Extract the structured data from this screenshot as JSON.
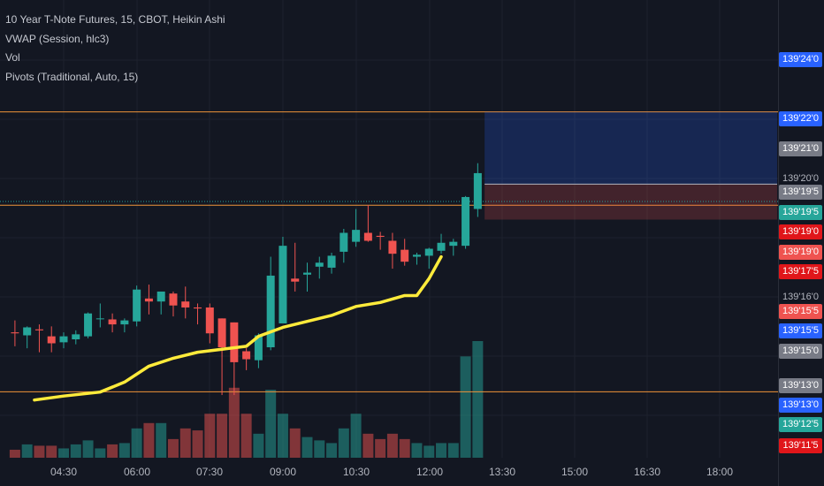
{
  "legend": {
    "title": "10 Year T-Note Futures, 15, CBOT, Heikin Ashi",
    "vwap": "VWAP (Session, hlc3)",
    "vol": "Vol",
    "pivots": "Pivots (Traditional, Auto, 15)"
  },
  "colors": {
    "up": "#26a69a",
    "down": "#ef5350",
    "vwap": "#ffeb3b",
    "pivot": "#f0953a",
    "bg": "#131722"
  },
  "price_axis": {
    "ticks": [
      "139'24'0",
      "139'22'0",
      "139'20'0",
      "139'16'0",
      "139'15'0",
      "139'13'0"
    ],
    "badges": [
      {
        "text": "139'22'0",
        "color": "#2962ff"
      },
      {
        "text": "139'21'0",
        "color": "#787b86"
      },
      {
        "text": "139'19'5",
        "color": "#787b86"
      },
      {
        "text": "139'19'5",
        "color": "#26a69a"
      },
      {
        "text": "139'19'0",
        "color": "#e0161a"
      },
      {
        "text": "139'19'0",
        "color": "#ef5350"
      },
      {
        "text": "139'17'5",
        "color": "#e0161a"
      },
      {
        "text": "139'15'5",
        "color": "#ef5350"
      },
      {
        "text": "139'15'5",
        "color": "#2962ff"
      },
      {
        "text": "139'15'0",
        "color": "#787b86"
      },
      {
        "text": "139'13'0",
        "color": "#787b86"
      },
      {
        "text": "139'13'0",
        "color": "#2962ff"
      },
      {
        "text": "139'12'5",
        "color": "#26a69a"
      },
      {
        "text": "139'11'5",
        "color": "#e0161a"
      }
    ]
  },
  "time_axis": [
    "04:30",
    "06:00",
    "07:30",
    "09:00",
    "10:30",
    "12:00",
    "13:30",
    "15:00",
    "16:30",
    "18:00"
  ],
  "chart_data": {
    "type": "candlestick",
    "title": "10 Year T-Note Futures, 15, CBOT, Heikin Ashi",
    "interval_minutes": 15,
    "price_unit": "32nds",
    "ylim": [
      139.34,
      139.8
    ],
    "pivot_levels": [
      139.6875,
      139.5938,
      139.4063
    ],
    "vwap": [
      [
        3.9,
        139.398
      ],
      [
        4.5,
        139.402
      ],
      [
        5.25,
        139.406
      ],
      [
        5.75,
        139.416
      ],
      [
        6.25,
        139.432
      ],
      [
        6.75,
        139.44
      ],
      [
        7.25,
        139.446
      ],
      [
        7.75,
        139.449
      ],
      [
        8.25,
        139.452
      ],
      [
        8.5,
        139.462
      ],
      [
        9.0,
        139.471
      ],
      [
        9.5,
        139.477
      ],
      [
        10.0,
        139.483
      ],
      [
        10.5,
        139.492
      ],
      [
        11.0,
        139.496
      ],
      [
        11.5,
        139.503
      ],
      [
        11.75,
        139.503
      ],
      [
        12.0,
        139.52
      ],
      [
        12.25,
        139.542
      ]
    ],
    "candles": [
      {
        "t": 3.5,
        "o": 139.466,
        "h": 139.478,
        "l": 139.452,
        "c": 139.465,
        "v": 1200
      },
      {
        "t": 3.75,
        "o": 139.463,
        "h": 139.472,
        "l": 139.45,
        "c": 139.471,
        "v": 2000
      },
      {
        "t": 4.0,
        "o": 139.469,
        "h": 139.474,
        "l": 139.446,
        "c": 139.468,
        "v": 1800
      },
      {
        "t": 4.25,
        "o": 139.462,
        "h": 139.472,
        "l": 139.446,
        "c": 139.455,
        "v": 1800
      },
      {
        "t": 4.5,
        "o": 139.456,
        "h": 139.466,
        "l": 139.45,
        "c": 139.462,
        "v": 1400
      },
      {
        "t": 4.75,
        "o": 139.459,
        "h": 139.468,
        "l": 139.454,
        "c": 139.464,
        "v": 2000
      },
      {
        "t": 5.0,
        "o": 139.462,
        "h": 139.486,
        "l": 139.46,
        "c": 139.485,
        "v": 2600
      },
      {
        "t": 5.25,
        "o": 139.48,
        "h": 139.495,
        "l": 139.471,
        "c": 139.48,
        "v": 1400
      },
      {
        "t": 5.5,
        "o": 139.479,
        "h": 139.485,
        "l": 139.466,
        "c": 139.474,
        "v": 2000
      },
      {
        "t": 5.75,
        "o": 139.474,
        "h": 139.48,
        "l": 139.466,
        "c": 139.478,
        "v": 2200
      },
      {
        "t": 6.0,
        "o": 139.477,
        "h": 139.513,
        "l": 139.472,
        "c": 139.509,
        "v": 4400
      },
      {
        "t": 6.25,
        "o": 139.5,
        "h": 139.514,
        "l": 139.484,
        "c": 139.497,
        "v": 5200
      },
      {
        "t": 6.5,
        "o": 139.497,
        "h": 139.506,
        "l": 139.484,
        "c": 139.507,
        "v": 5200
      },
      {
        "t": 6.75,
        "o": 139.505,
        "h": 139.507,
        "l": 139.482,
        "c": 139.493,
        "v": 2800
      },
      {
        "t": 7.0,
        "o": 139.497,
        "h": 139.512,
        "l": 139.48,
        "c": 139.491,
        "v": 4400
      },
      {
        "t": 7.25,
        "o": 139.491,
        "h": 139.495,
        "l": 139.474,
        "c": 139.49,
        "v": 4100
      },
      {
        "t": 7.5,
        "o": 139.491,
        "h": 139.495,
        "l": 139.455,
        "c": 139.465,
        "v": 6600
      },
      {
        "t": 7.75,
        "o": 139.48,
        "h": 139.48,
        "l": 139.403,
        "c": 139.451,
        "v": 6600
      },
      {
        "t": 8.0,
        "o": 139.476,
        "h": 139.476,
        "l": 139.403,
        "c": 139.436,
        "v": 10500
      },
      {
        "t": 8.25,
        "o": 139.447,
        "h": 139.45,
        "l": 139.428,
        "c": 139.439,
        "v": 6600
      },
      {
        "t": 8.5,
        "o": 139.438,
        "h": 139.465,
        "l": 139.43,
        "c": 139.463,
        "v": 3600
      },
      {
        "t": 8.75,
        "o": 139.451,
        "h": 139.542,
        "l": 139.448,
        "c": 139.523,
        "v": 10200
      },
      {
        "t": 9.0,
        "o": 139.475,
        "h": 139.562,
        "l": 139.475,
        "c": 139.553,
        "v": 6600
      },
      {
        "t": 9.25,
        "o": 139.52,
        "h": 139.556,
        "l": 139.507,
        "c": 139.517,
        "v": 4400
      },
      {
        "t": 9.5,
        "o": 139.524,
        "h": 139.536,
        "l": 139.507,
        "c": 139.526,
        "v": 3100
      },
      {
        "t": 9.75,
        "o": 139.532,
        "h": 139.542,
        "l": 139.52,
        "c": 139.536,
        "v": 2600
      },
      {
        "t": 10.0,
        "o": 139.531,
        "h": 139.546,
        "l": 139.525,
        "c": 139.543,
        "v": 2200
      },
      {
        "t": 10.25,
        "o": 139.547,
        "h": 139.57,
        "l": 139.536,
        "c": 139.566,
        "v": 4400
      },
      {
        "t": 10.5,
        "o": 139.557,
        "h": 139.59,
        "l": 139.552,
        "c": 139.569,
        "v": 6600
      },
      {
        "t": 10.75,
        "o": 139.566,
        "h": 139.594,
        "l": 139.557,
        "c": 139.558,
        "v": 3600
      },
      {
        "t": 11.0,
        "o": 139.563,
        "h": 139.567,
        "l": 139.549,
        "c": 139.562,
        "v": 2800
      },
      {
        "t": 11.25,
        "o": 139.558,
        "h": 139.566,
        "l": 139.53,
        "c": 139.545,
        "v": 3600
      },
      {
        "t": 11.5,
        "o": 139.549,
        "h": 139.56,
        "l": 139.533,
        "c": 139.537,
        "v": 2800
      },
      {
        "t": 11.75,
        "o": 139.542,
        "h": 139.546,
        "l": 139.534,
        "c": 139.544,
        "v": 2200
      },
      {
        "t": 12.0,
        "o": 139.543,
        "h": 139.551,
        "l": 139.53,
        "c": 139.55,
        "v": 1800
      },
      {
        "t": 12.25,
        "o": 139.548,
        "h": 139.565,
        "l": 139.545,
        "c": 139.556,
        "v": 2200
      },
      {
        "t": 12.5,
        "o": 139.553,
        "h": 139.56,
        "l": 139.543,
        "c": 139.557,
        "v": 2200
      },
      {
        "t": 12.75,
        "o": 139.553,
        "h": 139.603,
        "l": 139.55,
        "c": 139.602,
        "v": 15200
      },
      {
        "t": 13.0,
        "o": 139.59,
        "h": 139.636,
        "l": 139.582,
        "c": 139.626,
        "v": 17500
      }
    ],
    "position_tool": {
      "entry": 139.615,
      "target": 139.6875,
      "stop": 139.59,
      "t_start": 13.25,
      "t_end": 21.75
    }
  }
}
